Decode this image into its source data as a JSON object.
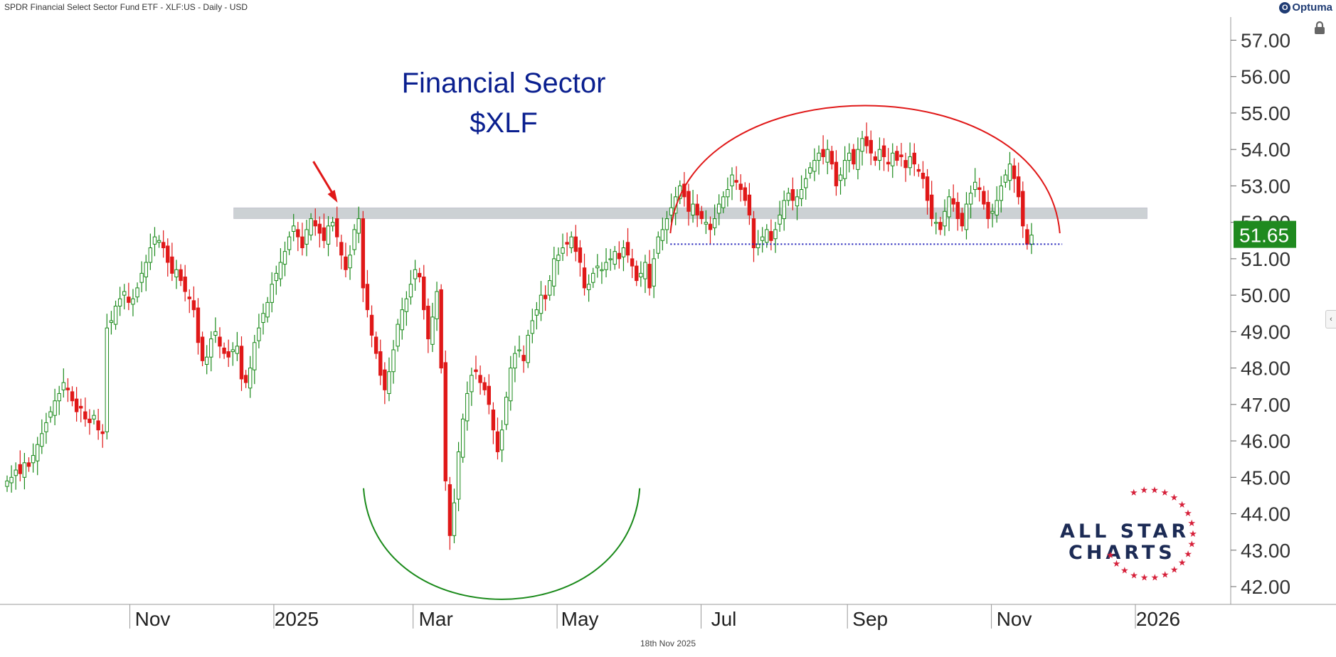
{
  "header": {
    "title": "SPDR Financial Select Sector Fund ETF - XLF:US - Daily - USD",
    "brand": "Optuma"
  },
  "footer": {
    "date": "18th Nov 2025"
  },
  "annotation": {
    "title_line1": "Financial Sector",
    "title_line2": "$XLF"
  },
  "logo": {
    "line1": "ALL STAR",
    "line2": "CHARTS"
  },
  "colors": {
    "up": "#1a8a1a",
    "down": "#e01818",
    "resistance_zone": "#c4cacd",
    "arc_top": "#e01818",
    "arc_bottom": "#1a8a1a",
    "support_line": "#1a1ab8",
    "price_badge": "#1f8a1f",
    "title": "#0a1f8f"
  },
  "icons": [
    "lock-icon",
    "collapse-arrow-icon",
    "red-arrow-annotation"
  ],
  "chart_data": {
    "type": "candlestick",
    "symbol": "XLF",
    "ylim": [
      42,
      57.4
    ],
    "y_ticks": [
      "57.00",
      "56.00",
      "55.00",
      "54.00",
      "53.00",
      "52.00",
      "51.00",
      "50.00",
      "49.00",
      "48.00",
      "47.00",
      "46.00",
      "45.00",
      "44.00",
      "43.00",
      "42.00"
    ],
    "x_ticks": [
      "Nov",
      "2025",
      "Mar",
      "May",
      "Jul",
      "Sep",
      "Nov",
      "2026"
    ],
    "last_price": "51.65",
    "resistance_zone": [
      52.1,
      52.4
    ],
    "support_level": 51.4,
    "series": [
      {
        "date_start": "2024-09-10",
        "date_end": "2025-11-18",
        "close": [
          44.9,
          45.0,
          45.2,
          45.1,
          45.4,
          45.3,
          45.6,
          45.9,
          46.2,
          46.5,
          46.8,
          47.1,
          47.3,
          47.6,
          47.4,
          47.1,
          46.8,
          46.9,
          46.6,
          46.5,
          46.7,
          46.3,
          46.2,
          49.1,
          49.3,
          49.7,
          49.9,
          50.1,
          49.8,
          49.9,
          50.2,
          50.6,
          50.9,
          51.3,
          51.6,
          51.5,
          51.3,
          50.9,
          50.6,
          50.7,
          50.4,
          50.1,
          49.9,
          49.6,
          48.7,
          48.2,
          48.3,
          48.8,
          49.0,
          48.6,
          48.4,
          48.3,
          48.5,
          48.6,
          47.7,
          47.6,
          48.0,
          48.7,
          49.1,
          49.5,
          49.8,
          50.3,
          50.6,
          50.9,
          51.2,
          51.6,
          51.9,
          51.6,
          51.3,
          51.8,
          52.1,
          51.9,
          51.7,
          51.5,
          51.9,
          52.0,
          51.6,
          51.1,
          50.7,
          51.1,
          51.8,
          52.1,
          50.2,
          49.6,
          48.9,
          48.4,
          47.8,
          47.4,
          47.9,
          48.5,
          49.2,
          49.6,
          49.9,
          50.3,
          50.7,
          50.5,
          49.6,
          48.8,
          49.4,
          50.1,
          48.0,
          44.9,
          43.4,
          44.3,
          45.7,
          46.6,
          47.3,
          47.8,
          47.9,
          47.6,
          47.4,
          47.0,
          46.3,
          45.7,
          46.3,
          47.2,
          48.0,
          48.4,
          48.5,
          48.2,
          48.9,
          49.3,
          49.6,
          50.0,
          49.9,
          50.4,
          51.0,
          51.1,
          51.3,
          51.4,
          51.6,
          51.2,
          50.9,
          50.2,
          50.3,
          50.6,
          50.8,
          50.7,
          50.9,
          51.0,
          51.2,
          51.0,
          51.3,
          51.1,
          50.8,
          50.4,
          50.6,
          50.9,
          50.2,
          51.0,
          51.6,
          51.8,
          52.1,
          52.4,
          52.7,
          53.0,
          52.7,
          52.3,
          52.5,
          52.2,
          52.1,
          52.0,
          51.8,
          52.1,
          52.5,
          52.7,
          52.9,
          53.3,
          53.1,
          52.9,
          52.6,
          52.2,
          51.3,
          51.4,
          51.6,
          51.8,
          51.5,
          51.8,
          52.2,
          52.6,
          52.8,
          52.6,
          52.7,
          52.9,
          53.2,
          53.5,
          53.7,
          53.9,
          53.8,
          54.0,
          53.6,
          53.0,
          53.3,
          53.7,
          53.9,
          53.6,
          54.0,
          54.3,
          54.1,
          53.9,
          53.7,
          54.0,
          53.8,
          53.6,
          53.9,
          53.7,
          53.8,
          53.5,
          53.8,
          53.6,
          53.4,
          53.2,
          52.6,
          52.1,
          52.0,
          51.8,
          52.3,
          52.7,
          52.5,
          52.1,
          51.9,
          52.5,
          52.8,
          53.1,
          52.9,
          52.5,
          52.1,
          52.3,
          52.6,
          53.0,
          53.3,
          53.6,
          53.2,
          52.7,
          51.9,
          51.4,
          51.65
        ]
      }
    ]
  }
}
